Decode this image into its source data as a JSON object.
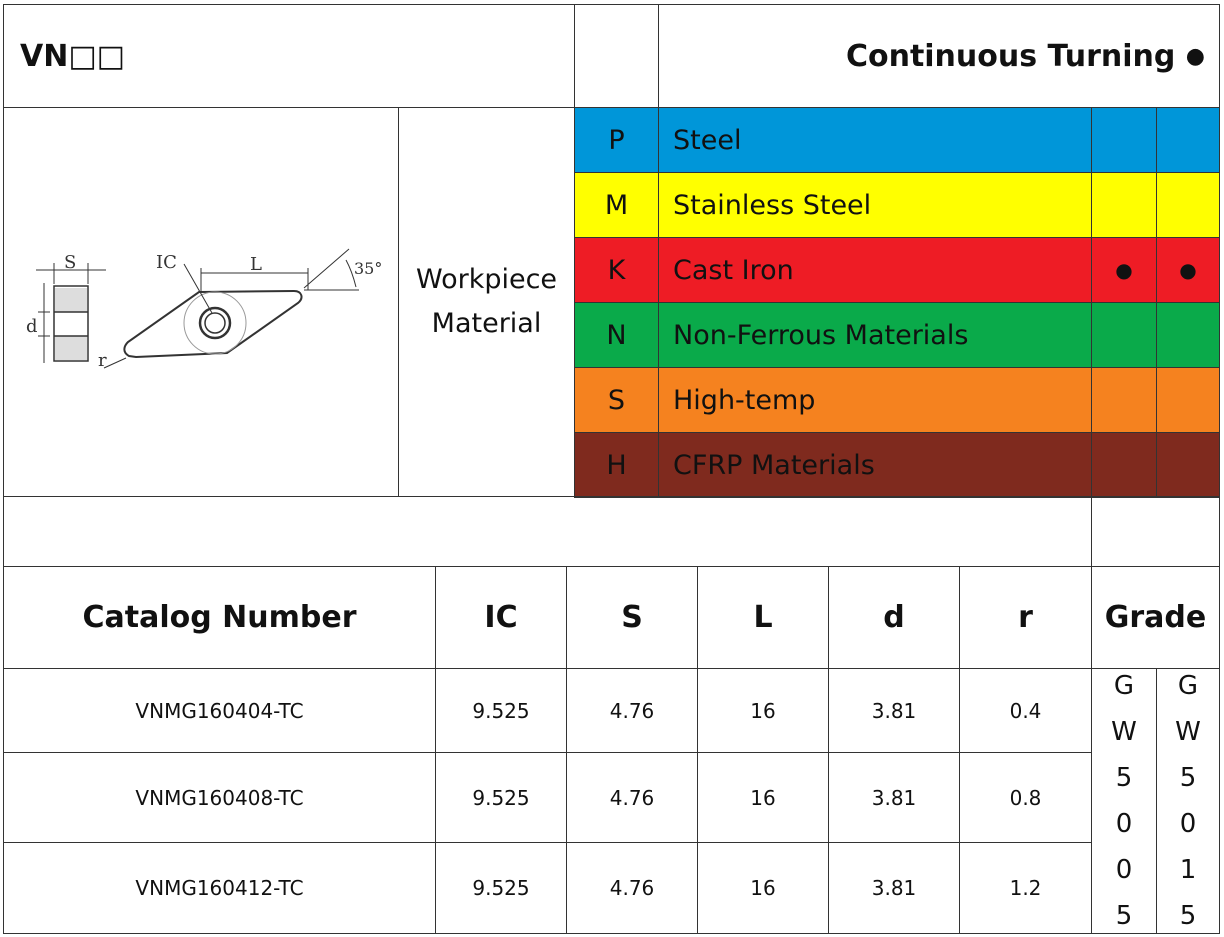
{
  "header": {
    "code": "VN□□",
    "machining_type": "Continuous Turning",
    "machining_marker": "●"
  },
  "diagram": {
    "labels": {
      "s": "S",
      "ic": "IC",
      "l": "L",
      "angle": "35°",
      "d": "d",
      "r": "r"
    }
  },
  "workpiece": {
    "label_line1": "Workpiece",
    "label_line2": "Material"
  },
  "materials": [
    {
      "code": "P",
      "name": "Steel",
      "color": "#0096D9",
      "grade1": "",
      "grade2": ""
    },
    {
      "code": "M",
      "name": "Stainless Steel",
      "color": "#FFFF00",
      "grade1": "",
      "grade2": ""
    },
    {
      "code": "K",
      "name": "Cast Iron",
      "color": "#EE1C25",
      "grade1": "●",
      "grade2": "●"
    },
    {
      "code": "N",
      "name": "Non-Ferrous Materials",
      "color": "#0AAA4A",
      "grade1": "",
      "grade2": ""
    },
    {
      "code": "S",
      "name": "High-temp",
      "color": "#F5821F",
      "grade1": "",
      "grade2": ""
    },
    {
      "code": "H",
      "name": "CFRP Materials",
      "color": "#7F2A1E",
      "grade1": "",
      "grade2": ""
    }
  ],
  "table": {
    "headers": {
      "catalog": "Catalog Number",
      "ic": "IC",
      "s": "S",
      "l": "L",
      "d": "d",
      "r": "r",
      "grade": "Grade"
    },
    "rows": [
      {
        "catalog": "VNMG160404-TC",
        "ic": "9.525",
        "s": "4.76",
        "l": "16",
        "d": "3.81",
        "r": "0.4"
      },
      {
        "catalog": "VNMG160408-TC",
        "ic": "9.525",
        "s": "4.76",
        "l": "16",
        "d": "3.81",
        "r": "0.8"
      },
      {
        "catalog": "VNMG160412-TC",
        "ic": "9.525",
        "s": "4.76",
        "l": "16",
        "d": "3.81",
        "r": "1.2"
      }
    ],
    "grades": [
      {
        "chars": [
          "G",
          "W",
          "5",
          "0",
          "0",
          "5"
        ]
      },
      {
        "chars": [
          "G",
          "W",
          "5",
          "0",
          "1",
          "5"
        ]
      }
    ]
  }
}
